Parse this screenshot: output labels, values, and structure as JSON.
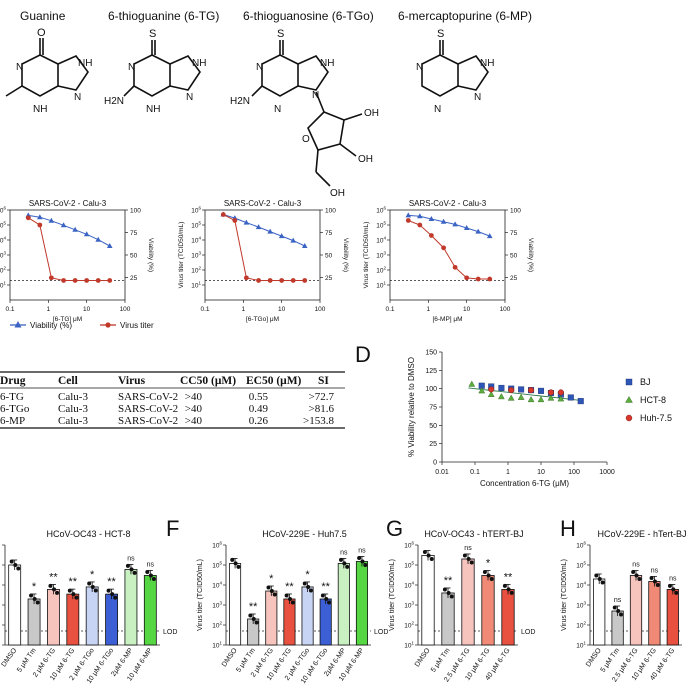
{
  "structures": [
    {
      "name": "Guanine",
      "sub": [
        "O",
        "N",
        "NH",
        "NH",
        "N"
      ]
    },
    {
      "name": "6-thioguanine (6-TG)",
      "sub": [
        "S",
        "N",
        "NH",
        "H2N",
        "N",
        "NH"
      ]
    },
    {
      "name": "6-thioguanosine (6-TGo)",
      "sub": [
        "S",
        "N",
        "NH",
        "H2N",
        "N",
        "N",
        "OH",
        "OH",
        "OH",
        "O"
      ]
    },
    {
      "name": "6-mercaptopurine (6-MP)",
      "sub": [
        "S",
        "N",
        "NH",
        "N",
        "N"
      ]
    }
  ],
  "legend": {
    "viability": "Viability (%)",
    "virus": "Virus titer"
  },
  "table": {
    "headers": [
      "Drug",
      "Cell",
      "Virus",
      "CC50 (μM)",
      "EC50 (μM)",
      "SI"
    ],
    "rows": [
      [
        "6-TG",
        "Calu-3",
        "SARS-CoV-2",
        ">40",
        "0.55",
        ">72.7"
      ],
      [
        "6-TGo",
        "Calu-3",
        "SARS-CoV-2",
        ">40",
        "0.49",
        ">81.6"
      ],
      [
        "6-MP",
        "Calu-3",
        "SARS-CoV-2",
        ">40",
        "0.26",
        ">153.8"
      ]
    ]
  },
  "panel_letters": {
    "D": "D",
    "F": "F",
    "G": "G",
    "H": "H"
  },
  "colors": {
    "viability": "#3b63c4",
    "virus": "#c0392b",
    "bj": "#2e56b8",
    "hct8": "#5cae3c",
    "huh": "#d7362a"
  },
  "chart_data": [
    {
      "type": "line",
      "title": "SARS-CoV-2 - Calu-3",
      "xlabel": "[6-TG] μM",
      "ylabel": "",
      "y2label": "Viability (%)",
      "xscale": "log",
      "xlim": [
        0.1,
        100
      ],
      "ylim_log": [
        1,
        1000000
      ],
      "y2lim": [
        0,
        100
      ],
      "x_ticks": [
        "0.1",
        "1",
        "10",
        "100"
      ],
      "y_ticks": [
        "10^1",
        "10^2",
        "10^3",
        "10^4",
        "10^5",
        "10^6"
      ],
      "y2_ticks": [
        "25",
        "50",
        "75",
        "100"
      ],
      "lod": 20,
      "series": [
        {
          "name": "Viability (%)",
          "axis": "right",
          "x": [
            0.3,
            0.6,
            1.2,
            2.5,
            5,
            10,
            20,
            40
          ],
          "y": [
            94,
            92,
            88,
            83,
            78,
            73,
            67,
            60
          ]
        },
        {
          "name": "Virus titer",
          "axis": "left",
          "x": [
            0.3,
            0.6,
            1.2,
            2.5,
            5,
            10,
            20,
            40
          ],
          "y": [
            300000,
            100000,
            30,
            20,
            20,
            20,
            20,
            20
          ]
        }
      ]
    },
    {
      "type": "line",
      "title": "SARS-CoV-2 - Calu-3",
      "xlabel": "[6-TGo] μM",
      "ylabel": "Virus titer (TCID50/mL)",
      "y2label": "Viability (%)",
      "xscale": "log",
      "xlim": [
        0.1,
        100
      ],
      "ylim_log": [
        1,
        1000000
      ],
      "y2lim": [
        0,
        100
      ],
      "x_ticks": [
        "0.1",
        "1",
        "10",
        "100"
      ],
      "y_ticks": [
        "10^1",
        "10^2",
        "10^3",
        "10^4",
        "10^5",
        "10^6"
      ],
      "y2_ticks": [
        "25",
        "50",
        "75",
        "100"
      ],
      "lod": 20,
      "series": [
        {
          "name": "Viability (%)",
          "axis": "right",
          "x": [
            0.3,
            0.6,
            1.2,
            2.5,
            5,
            10,
            20,
            40
          ],
          "y": [
            95,
            91,
            86,
            81,
            76,
            71,
            66,
            60
          ]
        },
        {
          "name": "Virus titer",
          "axis": "left",
          "x": [
            0.3,
            0.6,
            1.2,
            2.5,
            5,
            10,
            20,
            40
          ],
          "y": [
            500000,
            200000,
            30,
            20,
            20,
            20,
            20,
            20
          ]
        }
      ]
    },
    {
      "type": "line",
      "title": "SARS-CoV-2 - Calu-3",
      "xlabel": "[6-MP] μM",
      "ylabel": "Virus titer (TCID50/mL)",
      "y2label": "Viability (%)",
      "xscale": "log",
      "xlim": [
        0.1,
        100
      ],
      "ylim_log": [
        1,
        1000000
      ],
      "y2lim": [
        0,
        100
      ],
      "x_ticks": [
        "0.1",
        "1",
        "10",
        "100"
      ],
      "y_ticks": [
        "10^1",
        "10^2",
        "10^3",
        "10^4",
        "10^5",
        "10^6"
      ],
      "y2_ticks": [
        "25",
        "50",
        "75",
        "100"
      ],
      "lod": 20,
      "series": [
        {
          "name": "Viability (%)",
          "axis": "right",
          "x": [
            0.3,
            0.6,
            1.2,
            2.5,
            5,
            10,
            20,
            40
          ],
          "y": [
            94,
            93,
            90,
            87,
            84,
            80,
            76,
            71
          ]
        },
        {
          "name": "Virus titer",
          "axis": "left",
          "x": [
            0.3,
            0.6,
            1.2,
            2.5,
            5,
            10,
            20,
            40
          ],
          "y": [
            200000,
            100000,
            20000,
            3000,
            150,
            30,
            25,
            25
          ]
        }
      ]
    },
    {
      "type": "scatter",
      "title": "",
      "xlabel": "Concentration 6-TG (μM)",
      "ylabel": "% Viability relative to DMSO",
      "xscale": "log",
      "xlim": [
        0.01,
        1000
      ],
      "ylim": [
        0,
        150
      ],
      "x_ticks": [
        "0.01",
        "0.1",
        "1",
        "10",
        "100",
        "1000"
      ],
      "y_ticks": [
        "0",
        "25",
        "50",
        "75",
        "100",
        "125",
        "150"
      ],
      "legend_position": "right",
      "series": [
        {
          "name": "BJ",
          "x": [
            0.16,
            0.31,
            0.63,
            1.25,
            2.5,
            5,
            10,
            20,
            40,
            80,
            160
          ],
          "y": [
            104,
            103,
            101,
            100,
            99,
            98,
            97,
            94,
            92,
            88,
            83
          ]
        },
        {
          "name": "HCT-8",
          "x": [
            0.08,
            0.16,
            0.31,
            0.63,
            1.25,
            2.5,
            5,
            10,
            20,
            40
          ],
          "y": [
            106,
            97,
            92,
            89,
            87,
            88,
            85,
            85,
            87,
            86
          ]
        },
        {
          "name": "Huh-7.5",
          "x": [
            0.31,
            1.25,
            5,
            20,
            40
          ],
          "y": [
            99,
            98,
            98,
            95,
            95
          ]
        }
      ]
    },
    {
      "type": "bar",
      "title": "HCoV-OC43 - HCT-8",
      "ylabel": "",
      "lod_label": "LOD",
      "yscale": "log",
      "ylim_log": [
        10,
        1000000
      ],
      "categories": [
        "DMSO",
        "5 μM Tm",
        "2 μM 6-TG",
        "10 μM 6-TG",
        "2 μM 6-TGo",
        "10 μM 6-TGo",
        "2μM 6-MP",
        "10 μM 6-MP"
      ],
      "values": [
        100000,
        2000,
        6000,
        3500,
        8000,
        3500,
        60000,
        30000
      ],
      "significance": [
        "",
        "*",
        "**",
        "**",
        "*",
        "**",
        "ns",
        "ns"
      ],
      "bar_colors": [
        "#ffffff",
        "#c8c8c8",
        "#f6c3bd",
        "#e8513f",
        "#c8d4f3",
        "#3c5fd6",
        "#c8f0c0",
        "#55d642"
      ],
      "lod": 50
    },
    {
      "type": "bar",
      "title": "HCoV-229E - Huh7.5",
      "ylabel": "Virus titer (TCID50/mL)",
      "lod_label": "LOD",
      "yscale": "log",
      "ylim_log": [
        10,
        1000000
      ],
      "y_ticks": [
        "10^1",
        "10^2",
        "10^3",
        "10^4",
        "10^5",
        "10^6"
      ],
      "categories": [
        "DMSO",
        "5 μM Tm",
        "2 μM 6-TG",
        "10 μM 6-TG",
        "2 μM 6-TGo",
        "10 μM 6-TGo",
        "2μM 6-MP",
        "10 μM 6-MP"
      ],
      "values": [
        120000,
        200,
        5000,
        2000,
        8000,
        2000,
        120000,
        150000
      ],
      "significance": [
        "",
        "**",
        "*",
        "**",
        "*",
        "**",
        "ns",
        "ns"
      ],
      "bar_colors": [
        "#ffffff",
        "#c8c8c8",
        "#f6c3bd",
        "#e8513f",
        "#c8d4f3",
        "#3c5fd6",
        "#c8f0c0",
        "#55d642"
      ],
      "lod": 50
    },
    {
      "type": "bar",
      "title": "HCoV-OC43 - hTERT-BJ",
      "ylabel": "Virus titer (TCID50/mL)",
      "lod_label": "LOD",
      "yscale": "log",
      "ylim_log": [
        10,
        1000000
      ],
      "y_ticks": [
        "10^1",
        "10^2",
        "10^3",
        "10^4",
        "10^5",
        "10^6"
      ],
      "categories": [
        "DMSO",
        "5 μM Tm",
        "2.5 μM 6-TG",
        "10 μM 6-TG",
        "40 μM 6-TG"
      ],
      "values": [
        300000,
        4000,
        200000,
        30000,
        6000
      ],
      "significance": [
        "",
        "**",
        "ns",
        "*",
        "**"
      ],
      "bar_colors": [
        "#ffffff",
        "#c8c8c8",
        "#f6c3bd",
        "#f08a76",
        "#e8513f"
      ],
      "lod": 50
    },
    {
      "type": "bar",
      "title": "HCoV-229E - hTert-BJ",
      "ylabel": "Virus titer (TCID50/mL)",
      "yscale": "log",
      "ylim_log": [
        10,
        1000000
      ],
      "y_ticks": [
        "10^1",
        "10^2",
        "10^3",
        "10^4",
        "10^5",
        "10^6"
      ],
      "categories": [
        "DMSO",
        "5 μM Tm",
        "2.5 μM 6-TG",
        "10 μM 6-TG",
        "40 μM 6-TG"
      ],
      "values": [
        20000,
        500,
        30000,
        15000,
        6000
      ],
      "significance": [
        "",
        "ns",
        "ns",
        "ns",
        "ns"
      ],
      "bar_colors": [
        "#ffffff",
        "#c8c8c8",
        "#f6c3bd",
        "#f08a76",
        "#e8513f"
      ],
      "lod": 50
    }
  ]
}
